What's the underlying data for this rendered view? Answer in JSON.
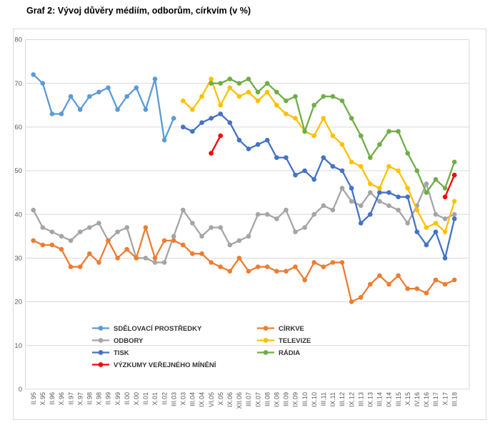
{
  "title": "Graf 2: Vývoj důvěry médiím, odborům, církvím (v %)",
  "chart_data": {
    "type": "line",
    "title": "Graf 2: Vývoj důvěry médiím, odborům, církvím (v %)",
    "xlabel": "",
    "ylabel": "",
    "ylim": [
      0,
      80
    ],
    "ytick_step": 10,
    "yticks": [
      0,
      10,
      20,
      30,
      40,
      50,
      60,
      70,
      80
    ],
    "grid": true,
    "grid_color": "#D9D9D9",
    "axis_text_color": "#595959",
    "legend_position": "inside-bottom-left",
    "categories": [
      "II.95",
      "X.95",
      "II.96",
      "X.96",
      "II.97",
      "X.97",
      "II.98",
      "X.98",
      "II.99",
      "X.99",
      "II.00",
      "X.00",
      "II.01",
      "X.01",
      "II.02",
      "III.03",
      "X.03",
      "III.04",
      "IX.04",
      "VI.05",
      "X.05",
      "IX.06",
      "XII.06",
      "III.07",
      "IX.07",
      "III.08",
      "IX.08",
      "III.09",
      "IX.09",
      "III.10",
      "IX.10",
      "III.11",
      "IX.11",
      "III.12",
      "IX.12",
      "III.13",
      "IX.13",
      "III.14",
      "IX.14",
      "III.15",
      "X.15",
      "IV.16",
      "IX.16",
      "III.17",
      "X.17",
      "III.18"
    ],
    "series": [
      {
        "name": "SDĚLOVACÍ PROSTŘEDKY",
        "color": "#5B9BD5",
        "values": [
          72,
          70,
          63,
          63,
          67,
          64,
          67,
          68,
          69,
          64,
          67,
          69,
          64,
          71,
          57,
          62,
          null,
          null,
          null,
          null,
          null,
          null,
          null,
          null,
          null,
          null,
          null,
          null,
          null,
          null,
          null,
          null,
          null,
          null,
          null,
          null,
          null,
          null,
          null,
          null,
          null,
          null,
          null,
          null,
          null,
          null
        ]
      },
      {
        "name": "ODBORY",
        "color": "#A5A5A5",
        "values": [
          41,
          37,
          36,
          35,
          34,
          36,
          37,
          38,
          34,
          36,
          37,
          30,
          30,
          29,
          29,
          35,
          41,
          38,
          35,
          37,
          37,
          33,
          34,
          35,
          40,
          40,
          39,
          41,
          36,
          37,
          40,
          42,
          41,
          46,
          43,
          42,
          45,
          43,
          42,
          41,
          38,
          42,
          47,
          40,
          39,
          40
        ]
      },
      {
        "name": "TISK",
        "color": "#4472C4",
        "values": [
          null,
          null,
          null,
          null,
          null,
          null,
          null,
          null,
          null,
          null,
          null,
          null,
          null,
          null,
          null,
          null,
          60,
          59,
          61,
          62,
          63,
          61,
          57,
          55,
          56,
          57,
          53,
          53,
          49,
          50,
          48,
          53,
          51,
          50,
          46,
          38,
          40,
          45,
          45,
          44,
          44,
          36,
          33,
          36,
          30,
          39
        ]
      },
      {
        "name": "VÝZKUMY VEŘEJNÉHO MÍNĚNÍ",
        "color": "#FF0000",
        "values": [
          null,
          null,
          null,
          null,
          null,
          null,
          null,
          null,
          null,
          null,
          null,
          null,
          null,
          null,
          null,
          null,
          null,
          null,
          null,
          54,
          58,
          null,
          null,
          null,
          null,
          null,
          null,
          null,
          null,
          null,
          null,
          null,
          null,
          null,
          null,
          null,
          null,
          null,
          null,
          null,
          null,
          null,
          null,
          null,
          44,
          49
        ]
      },
      {
        "name": "CÍRKVE",
        "color": "#ED7D31",
        "values": [
          34,
          33,
          33,
          32,
          28,
          28,
          31,
          29,
          34,
          30,
          32,
          30,
          37,
          30,
          34,
          34,
          33,
          31,
          31,
          29,
          28,
          27,
          30,
          27,
          28,
          28,
          27,
          27,
          28,
          25,
          29,
          28,
          29,
          29,
          20,
          21,
          24,
          26,
          24,
          26,
          23,
          23,
          22,
          25,
          24,
          25
        ]
      },
      {
        "name": "TELEVIZE",
        "color": "#FFC000",
        "values": [
          null,
          null,
          null,
          null,
          null,
          null,
          null,
          null,
          null,
          null,
          null,
          null,
          null,
          null,
          null,
          null,
          66,
          64,
          67,
          71,
          65,
          69,
          67,
          68,
          66,
          68,
          65,
          63,
          62,
          59,
          58,
          62,
          58,
          56,
          52,
          51,
          47,
          46,
          51,
          50,
          46,
          41,
          37,
          38,
          36,
          43
        ]
      },
      {
        "name": "RÁDIA",
        "color": "#70AD47",
        "values": [
          null,
          null,
          null,
          null,
          null,
          null,
          null,
          null,
          null,
          null,
          null,
          null,
          null,
          null,
          null,
          null,
          null,
          null,
          null,
          70,
          70,
          71,
          70,
          71,
          68,
          70,
          68,
          66,
          67,
          59,
          65,
          67,
          67,
          66,
          62,
          58,
          53,
          56,
          59,
          59,
          54,
          50,
          45,
          48,
          46,
          52
        ]
      }
    ],
    "legend_columns": [
      [
        "SDĚLOVACÍ PROSTŘEDKY",
        "ODBORY",
        "TISK",
        "VÝZKUMY VEŘEJNÉHO MÍNĚNÍ"
      ],
      [
        "CÍRKVE",
        "TELEVIZE",
        "RÁDIA"
      ]
    ]
  }
}
